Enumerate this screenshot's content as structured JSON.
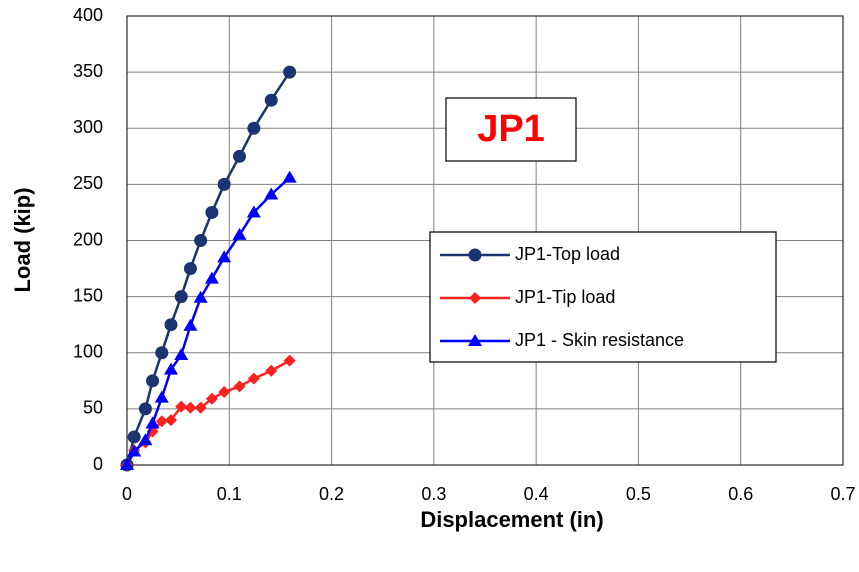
{
  "chart_data": {
    "type": "line",
    "xlabel": "Displacement (in)",
    "ylabel": "Load (kip)",
    "annotation": "JP1",
    "x": [
      0,
      0.007,
      0.018,
      0.025,
      0.034,
      0.043,
      0.053,
      0.062,
      0.072,
      0.083,
      0.095,
      0.11,
      0.124,
      0.141,
      0.159
    ],
    "series": [
      {
        "name": "JP1-Top load",
        "color": "#1b3370",
        "marker": "circle",
        "values": [
          0,
          25,
          50,
          75,
          100,
          125,
          150,
          175,
          200,
          225,
          250,
          275,
          300,
          325,
          350
        ]
      },
      {
        "name": "JP1-Tip load",
        "color": "#ff2020",
        "marker": "diamond",
        "values": [
          0,
          13,
          20,
          30,
          39,
          40,
          52,
          51,
          51,
          59,
          65,
          70,
          77,
          84,
          93
        ]
      },
      {
        "name": "JP1 - Skin resistance",
        "color": "#0000ff",
        "marker": "triangle",
        "values": [
          0,
          12,
          22,
          37,
          60,
          85,
          98,
          124,
          149,
          166,
          185,
          205,
          225,
          241,
          256
        ]
      }
    ],
    "xlim": [
      0,
      0.7
    ],
    "xticks": [
      0,
      0.1,
      0.2,
      0.3,
      0.4,
      0.5,
      0.6,
      0.7
    ],
    "ylim": [
      0,
      400
    ],
    "yticks": [
      0,
      50,
      100,
      150,
      200,
      250,
      300,
      350,
      400
    ],
    "grid": true,
    "legend": "right"
  }
}
